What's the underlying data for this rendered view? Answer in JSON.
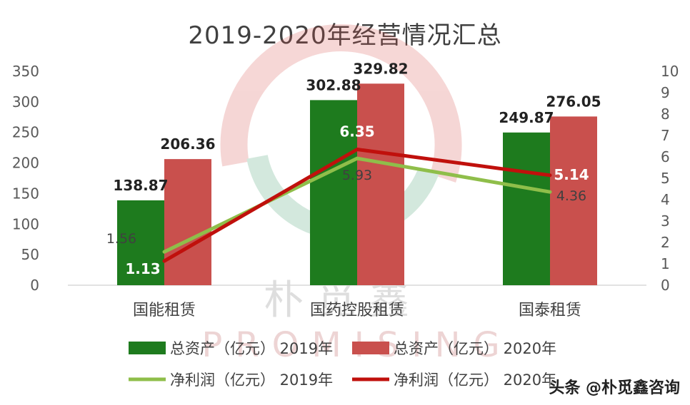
{
  "chart_data": {
    "type": "bar",
    "title": "2019-2020年经营情况汇总",
    "categories": [
      "国能租赁",
      "国药控股租赁",
      "国泰租赁"
    ],
    "bar_series": [
      {
        "name": "总资产（亿元） 2019年",
        "values": [
          138.87,
          302.88,
          249.87
        ],
        "color": "#1e7b1e"
      },
      {
        "name": "总资产（亿元） 2020年",
        "values": [
          206.36,
          329.82,
          276.05
        ],
        "color": "#c9504d"
      }
    ],
    "line_series": [
      {
        "name": "净利润（亿元） 2019年",
        "values": [
          1.56,
          5.93,
          4.36
        ],
        "color": "#8fbe4a"
      },
      {
        "name": "净利润（亿元） 2020年",
        "values": [
          1.13,
          6.35,
          5.14
        ],
        "color": "#c0100c"
      }
    ],
    "y_left": {
      "range": [
        0,
        350
      ],
      "ticks": [
        0,
        50,
        100,
        150,
        200,
        250,
        300,
        350
      ]
    },
    "y_right": {
      "range": [
        0,
        10
      ],
      "ticks": [
        0,
        1,
        2,
        3,
        4,
        5,
        6,
        7,
        8,
        9,
        10
      ]
    },
    "legend_position": "bottom",
    "grid": false
  },
  "watermark": {
    "text": "头条 @朴觅鑫咨询",
    "logo_text": "PROMISING",
    "logo_chinese": "朴觅鑫"
  }
}
